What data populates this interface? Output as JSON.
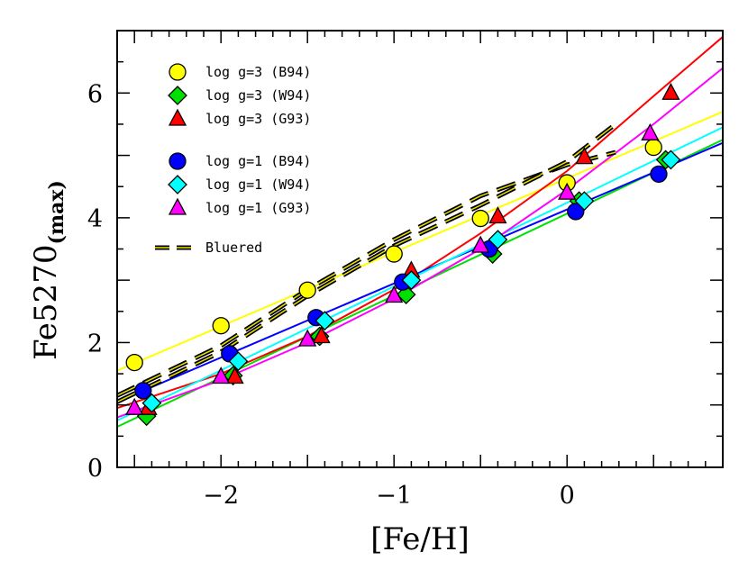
{
  "chart_data": {
    "type": "scatter",
    "title": "",
    "xlabel": "[Fe/H]",
    "ylabel_main": "Fe5270",
    "ylabel_sub": "(max)",
    "xlim": [
      -2.6,
      0.9
    ],
    "ylim": [
      0,
      7
    ],
    "x_ticks": [
      -2,
      -1,
      0
    ],
    "x_tick_labels": [
      "−2",
      "−1",
      "0"
    ],
    "y_ticks": [
      0,
      2,
      4,
      6
    ],
    "y_tick_labels": [
      "0",
      "2",
      "4",
      "6"
    ],
    "grid": false,
    "legend_position": "top-left",
    "series": [
      {
        "name": "log g=3 (B94)",
        "marker": "circle",
        "color": "#ffff00",
        "x": [
          -2.5,
          -2.0,
          -1.5,
          -1.0,
          -0.5,
          0.0,
          0.5
        ],
        "y": [
          1.68,
          2.27,
          2.84,
          3.42,
          3.99,
          4.56,
          5.13
        ]
      },
      {
        "name": "log g=3 (W94)",
        "marker": "diamond",
        "color": "#00e000",
        "x": [
          -2.43,
          -1.93,
          -1.43,
          -0.93,
          -0.43,
          0.07,
          0.57
        ],
        "y": [
          0.82,
          1.47,
          2.1,
          2.77,
          3.42,
          4.27,
          4.93
        ]
      },
      {
        "name": "log g=3 (G93)",
        "marker": "triangle",
        "color": "#ff0000",
        "x": [
          -2.42,
          -1.92,
          -1.42,
          -0.9,
          -0.4,
          0.1,
          0.6
        ],
        "y": [
          0.95,
          1.45,
          2.1,
          3.15,
          4.02,
          4.97,
          6.0
        ]
      },
      {
        "name": "log g=1 (B94)",
        "marker": "circle",
        "color": "#0000ff",
        "x": [
          -2.45,
          -1.95,
          -1.45,
          -0.95,
          -0.45,
          0.05,
          0.53
        ],
        "y": [
          1.23,
          1.82,
          2.4,
          2.97,
          3.5,
          4.1,
          4.7
        ]
      },
      {
        "name": "log g=1 (W94)",
        "marker": "diamond",
        "color": "#00ffff",
        "x": [
          -2.4,
          -1.9,
          -1.4,
          -0.9,
          -0.4,
          0.1,
          0.6
        ],
        "y": [
          1.03,
          1.7,
          2.35,
          3.0,
          3.65,
          4.27,
          4.93
        ]
      },
      {
        "name": "log g=1 (G93)",
        "marker": "triangle",
        "color": "#ff00ff",
        "x": [
          -2.5,
          -2.0,
          -1.5,
          -1.0,
          -0.5,
          0.0,
          0.48
        ],
        "y": [
          0.95,
          1.45,
          2.05,
          2.75,
          3.55,
          4.4,
          5.35
        ]
      }
    ],
    "fit_lines": [
      {
        "color": "#ffff00",
        "x": [
          -2.6,
          0.9
        ],
        "y": [
          1.55,
          5.7
        ]
      },
      {
        "color": "#00e000",
        "x": [
          -2.6,
          0.9
        ],
        "y": [
          0.65,
          5.25
        ]
      },
      {
        "color": "#ff0000",
        "x": [
          -2.6,
          -2.0,
          -1.5,
          -1.0,
          -0.5,
          0.0,
          0.5,
          0.9
        ],
        "y": [
          0.95,
          1.5,
          2.1,
          2.85,
          3.75,
          4.75,
          5.95,
          6.9
        ]
      },
      {
        "color": "#0000ff",
        "x": [
          -2.6,
          0.9
        ],
        "y": [
          1.05,
          5.2
        ]
      },
      {
        "color": "#00ffff",
        "x": [
          -2.6,
          0.9
        ],
        "y": [
          0.75,
          5.45
        ]
      },
      {
        "color": "#ff00ff",
        "x": [
          -2.6,
          -2.0,
          -1.5,
          -1.0,
          -0.5,
          0.0,
          0.5,
          0.9
        ],
        "y": [
          0.8,
          1.4,
          2.0,
          2.7,
          3.5,
          4.45,
          5.5,
          6.4
        ]
      }
    ],
    "bluered": {
      "name": "Bluered",
      "lines": [
        {
          "x": [
            -2.6,
            -2.0,
            -1.5,
            -1.0,
            -0.5,
            0.0,
            0.28
          ],
          "y": [
            1.15,
            1.95,
            2.85,
            3.65,
            4.35,
            4.85,
            5.05
          ]
        },
        {
          "x": [
            -2.6,
            -2.0,
            -1.5,
            -1.0,
            -0.5,
            0.0,
            0.28
          ],
          "y": [
            1.05,
            1.85,
            2.75,
            3.55,
            4.2,
            4.9,
            5.5
          ]
        }
      ]
    }
  }
}
